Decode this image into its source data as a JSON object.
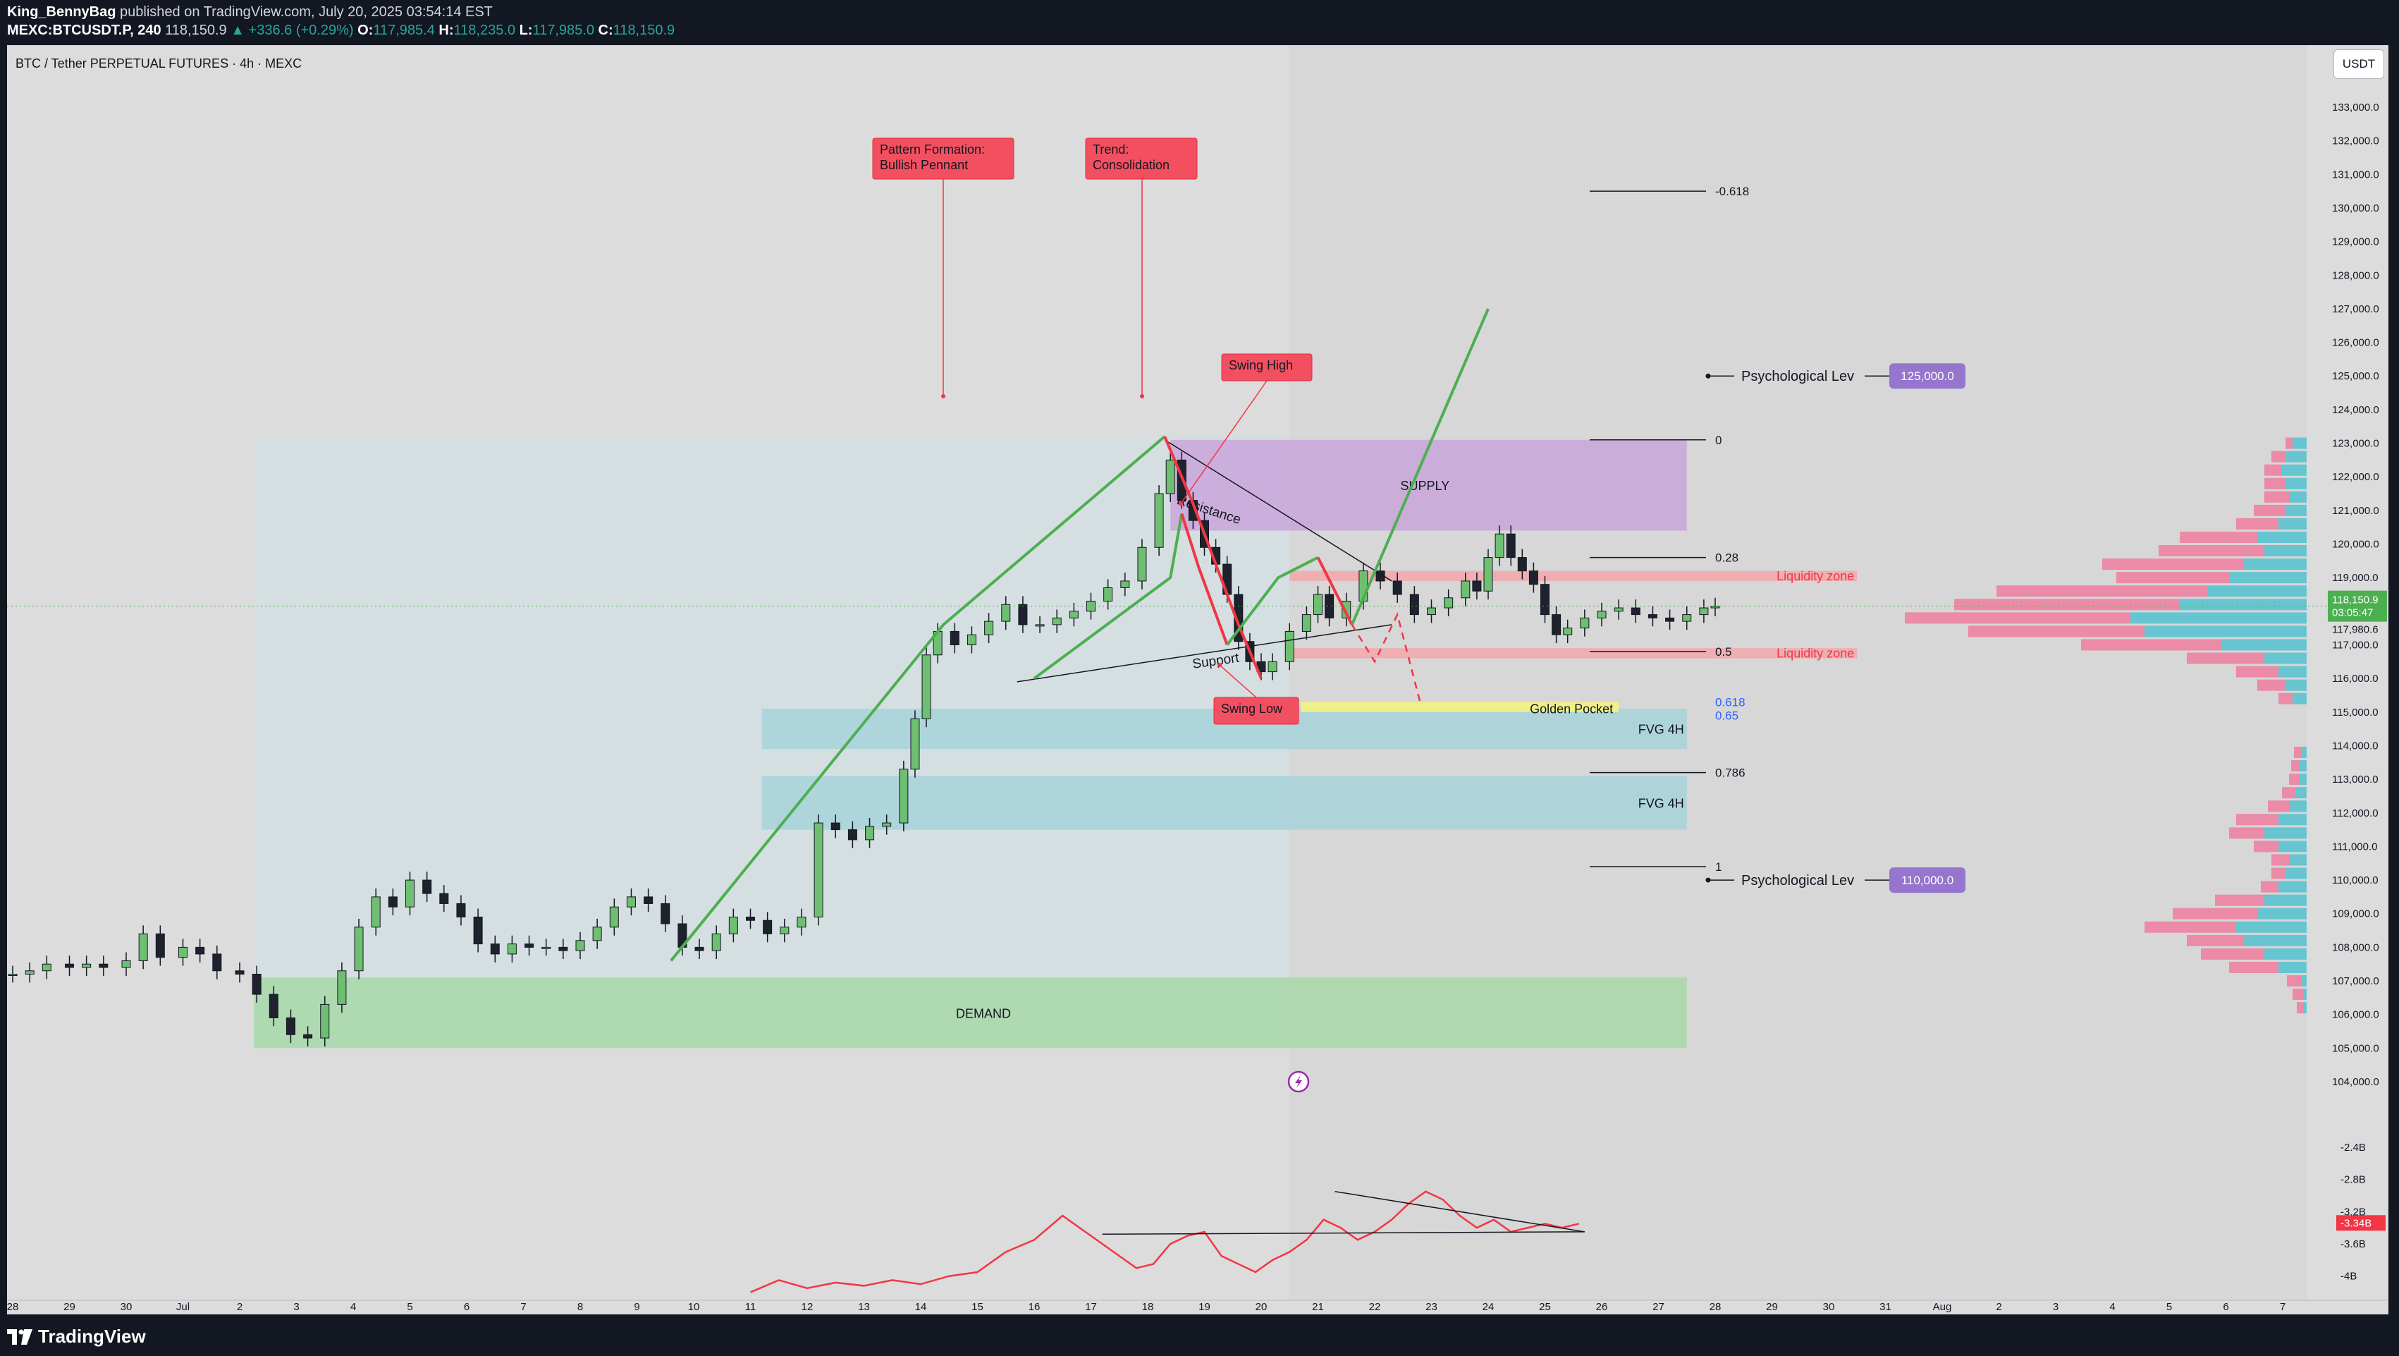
{
  "header": {
    "publisher": "King_BennyBag",
    "published_text": "published on TradingView.com, July 20, 2025 03:54:14 EST",
    "symbol": "MEXC:BTCUSDT.P, 240",
    "last_price": "118,150.9",
    "change": "▲ +336.6 (+0.29%)",
    "ohlc": [
      {
        "k": "O:",
        "v": "117,985.4"
      },
      {
        "k": "H:",
        "v": "118,235.0"
      },
      {
        "k": "L:",
        "v": "117,985.0"
      },
      {
        "k": "C:",
        "v": "118,150.9"
      }
    ]
  },
  "chart_title": "BTC / Tether PERPETUAL FUTURES · 4h · MEXC",
  "currency_button": "USDT",
  "footer": {
    "brand": "TradingView"
  },
  "colors": {
    "background": "#dcdcdc",
    "bull": "#6fbf73",
    "bear": "#1e222d",
    "bear_move": "#f23645",
    "bull_move": "#4caf50",
    "supply_zone": "#c9a6d9",
    "demand_zone": "#a8d8a8",
    "fvg_zone": "#a7d4d9",
    "liquidity_zone": "#f3a7ac",
    "golden_pocket": "#f5f57a",
    "label_red": "#f25060",
    "badge_purple": "#9575cd",
    "indicator_line": "#f23645",
    "price_badge": "#4caf50"
  },
  "chart_data": {
    "type": "candlestick",
    "title": "BTC / Tether PERPETUAL FUTURES · 4h · MEXC",
    "price_axis": {
      "ylim": [
        104000,
        133000
      ],
      "ticks": [
        "133,000.0",
        "132,000.0",
        "131,000.0",
        "130,000.0",
        "129,000.0",
        "128,000.0",
        "127,000.0",
        "126,000.0",
        "125,000.0",
        "124,000.0",
        "123,000.0",
        "122,000.0",
        "121,000.0",
        "120,000.0",
        "119,000.0",
        "118,000.0",
        "117,000.0",
        "116,000.0",
        "115,000.0",
        "114,000.0",
        "113,000.0",
        "112,000.0",
        "111,000.0",
        "110,000.0",
        "109,000.0",
        "108,000.0",
        "107,000.0",
        "106,000.0",
        "105,000.0",
        "104,000.0"
      ],
      "last_price": "118,150.9",
      "countdown": "03:05:47",
      "prev_close": "117,980.6"
    },
    "time_axis": {
      "labels": [
        "28",
        "29",
        "30",
        "Jul",
        "2",
        "3",
        "4",
        "5",
        "6",
        "7",
        "8",
        "9",
        "10",
        "11",
        "12",
        "13",
        "14",
        "15",
        "16",
        "17",
        "18",
        "19",
        "20",
        "21",
        "22",
        "23",
        "24",
        "25",
        "26",
        "27",
        "28",
        "29",
        "30",
        "31",
        "Aug",
        "2",
        "3",
        "4",
        "5",
        "6",
        "7"
      ],
      "start_date": "2025-06-28"
    },
    "candles_close_path": [
      [
        0.0,
        107200
      ],
      [
        0.3,
        107300
      ],
      [
        0.6,
        107500
      ],
      [
        1.0,
        107400
      ],
      [
        1.3,
        107500
      ],
      [
        1.6,
        107400
      ],
      [
        2.0,
        107600
      ],
      [
        2.3,
        108400
      ],
      [
        2.6,
        107700
      ],
      [
        3.0,
        108000
      ],
      [
        3.3,
        107800
      ],
      [
        3.6,
        107300
      ],
      [
        4.0,
        107200
      ],
      [
        4.3,
        106600
      ],
      [
        4.6,
        105900
      ],
      [
        4.9,
        105400
      ],
      [
        5.2,
        105300
      ],
      [
        5.5,
        106300
      ],
      [
        5.8,
        107300
      ],
      [
        6.1,
        108600
      ],
      [
        6.4,
        109500
      ],
      [
        6.7,
        109200
      ],
      [
        7.0,
        110000
      ],
      [
        7.3,
        109600
      ],
      [
        7.6,
        109300
      ],
      [
        7.9,
        108900
      ],
      [
        8.2,
        108100
      ],
      [
        8.5,
        107800
      ],
      [
        8.8,
        108100
      ],
      [
        9.1,
        108000
      ],
      [
        9.4,
        108000
      ],
      [
        9.7,
        107900
      ],
      [
        10.0,
        108200
      ],
      [
        10.3,
        108600
      ],
      [
        10.6,
        109200
      ],
      [
        10.9,
        109500
      ],
      [
        11.2,
        109300
      ],
      [
        11.5,
        108700
      ],
      [
        11.8,
        108000
      ],
      [
        12.1,
        107900
      ],
      [
        12.4,
        108400
      ],
      [
        12.7,
        108900
      ],
      [
        13.0,
        108800
      ],
      [
        13.3,
        108400
      ],
      [
        13.6,
        108600
      ],
      [
        13.9,
        108900
      ],
      [
        14.2,
        111700
      ],
      [
        14.5,
        111500
      ],
      [
        14.8,
        111200
      ],
      [
        15.1,
        111600
      ],
      [
        15.4,
        111700
      ],
      [
        15.7,
        113300
      ],
      [
        15.9,
        114800
      ],
      [
        16.1,
        116700
      ],
      [
        16.3,
        117400
      ],
      [
        16.6,
        117000
      ],
      [
        16.9,
        117300
      ],
      [
        17.2,
        117700
      ],
      [
        17.5,
        118200
      ],
      [
        17.8,
        117600
      ],
      [
        18.1,
        117600
      ],
      [
        18.4,
        117800
      ],
      [
        18.7,
        118000
      ],
      [
        19.0,
        118300
      ],
      [
        19.3,
        118700
      ],
      [
        19.6,
        118900
      ],
      [
        19.9,
        119900
      ],
      [
        20.2,
        121500
      ],
      [
        20.4,
        122500
      ],
      [
        20.6,
        121300
      ],
      [
        20.8,
        120700
      ],
      [
        21.0,
        119900
      ],
      [
        21.2,
        119400
      ],
      [
        21.4,
        118500
      ],
      [
        21.6,
        117100
      ],
      [
        21.8,
        116500
      ],
      [
        22.0,
        116200
      ],
      [
        22.2,
        116500
      ],
      [
        22.5,
        117400
      ],
      [
        22.8,
        117900
      ],
      [
        23.0,
        118500
      ],
      [
        23.2,
        117800
      ],
      [
        23.5,
        118300
      ],
      [
        23.8,
        119200
      ],
      [
        24.1,
        118900
      ],
      [
        24.4,
        118500
      ],
      [
        24.7,
        117900
      ],
      [
        25.0,
        118100
      ],
      [
        25.3,
        118400
      ],
      [
        25.6,
        118900
      ],
      [
        25.8,
        118600
      ],
      [
        26.0,
        119600
      ],
      [
        26.2,
        120300
      ],
      [
        26.4,
        119600
      ],
      [
        26.6,
        119200
      ],
      [
        26.8,
        118800
      ],
      [
        27.0,
        117900
      ],
      [
        27.2,
        117300
      ],
      [
        27.4,
        117500
      ],
      [
        27.7,
        117800
      ],
      [
        28.0,
        118000
      ],
      [
        28.3,
        118100
      ],
      [
        28.6,
        117900
      ],
      [
        28.9,
        117800
      ],
      [
        29.2,
        117700
      ],
      [
        29.5,
        117900
      ],
      [
        29.8,
        118100
      ],
      [
        30.0,
        118150.9
      ]
    ],
    "drawings": {
      "zones": [
        {
          "name": "SUPPLY",
          "from": 120400,
          "to": 123100
        },
        {
          "name": "DEMAND",
          "from": 105000,
          "to": 107100
        },
        {
          "name": "FVG 4H",
          "from": 113900,
          "to": 115100
        },
        {
          "name": "FVG 4H",
          "from": 111500,
          "to": 113100
        },
        {
          "name": "Liquidity zone",
          "from": 118900,
          "to": 119200
        },
        {
          "name": "Liquidity zone",
          "from": 116600,
          "to": 116900
        },
        {
          "name": "Golden Pocket",
          "from": 115000,
          "to": 115300
        }
      ],
      "fib_levels": [
        {
          "label": "-0.618",
          "price": 130500
        },
        {
          "label": "0",
          "price": 123100
        },
        {
          "label": "0.28",
          "price": 119600
        },
        {
          "label": "0.5",
          "price": 116800
        },
        {
          "label": "0.618",
          "price": 115300
        },
        {
          "label": "0.65",
          "price": 114900
        },
        {
          "label": "0.786",
          "price": 113200
        },
        {
          "label": "1",
          "price": 110400
        }
      ],
      "psychological_levels": [
        {
          "label": "Psychological Lev",
          "badge": "125,000.0",
          "price": 125000
        },
        {
          "label": "Psychological Lev",
          "badge": "110,000.0",
          "price": 110000
        }
      ],
      "callouts": [
        {
          "text": [
            "Pattern Formation:",
            "Bullish Pennant"
          ]
        },
        {
          "text": [
            "Trend:",
            "Consolidation"
          ]
        },
        {
          "text": [
            "Swing High"
          ]
        },
        {
          "text": [
            "Swing Low"
          ]
        }
      ],
      "trendline_labels": [
        "Resistance",
        "Support"
      ]
    },
    "indicator": {
      "axis_labels": [
        "-2.4B",
        "-2.8B",
        "-3.2B",
        "-3.6B",
        "-4B"
      ],
      "current_value": "-3.34B",
      "line": [
        [
          13.0,
          -4.2
        ],
        [
          13.5,
          -4.05
        ],
        [
          14.0,
          -4.15
        ],
        [
          14.5,
          -4.08
        ],
        [
          15.0,
          -4.12
        ],
        [
          15.5,
          -4.05
        ],
        [
          16.0,
          -4.1
        ],
        [
          16.5,
          -4.0
        ],
        [
          17.0,
          -3.95
        ],
        [
          17.5,
          -3.7
        ],
        [
          18.0,
          -3.55
        ],
        [
          18.5,
          -3.25
        ],
        [
          18.9,
          -3.45
        ],
        [
          19.2,
          -3.6
        ],
        [
          19.5,
          -3.75
        ],
        [
          19.8,
          -3.9
        ],
        [
          20.1,
          -3.85
        ],
        [
          20.4,
          -3.6
        ],
        [
          20.7,
          -3.5
        ],
        [
          21.0,
          -3.45
        ],
        [
          21.3,
          -3.75
        ],
        [
          21.6,
          -3.85
        ],
        [
          21.9,
          -3.95
        ],
        [
          22.2,
          -3.8
        ],
        [
          22.5,
          -3.7
        ],
        [
          22.8,
          -3.55
        ],
        [
          23.1,
          -3.3
        ],
        [
          23.4,
          -3.4
        ],
        [
          23.7,
          -3.55
        ],
        [
          24.0,
          -3.45
        ],
        [
          24.3,
          -3.3
        ],
        [
          24.6,
          -3.1
        ],
        [
          24.9,
          -2.95
        ],
        [
          25.2,
          -3.05
        ],
        [
          25.5,
          -3.25
        ],
        [
          25.8,
          -3.4
        ],
        [
          26.1,
          -3.3
        ],
        [
          26.4,
          -3.45
        ],
        [
          26.7,
          -3.4
        ],
        [
          27.0,
          -3.35
        ],
        [
          27.3,
          -3.4
        ],
        [
          27.6,
          -3.35
        ]
      ]
    }
  }
}
